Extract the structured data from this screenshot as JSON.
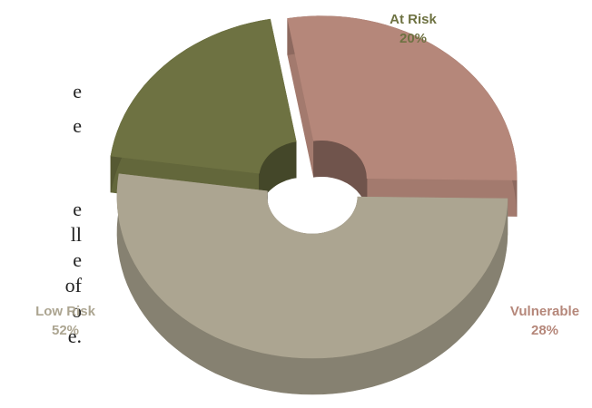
{
  "body_text_fragments": [
    "e",
    "e",
    "e",
    "ll",
    "e",
    "of",
    "o",
    "e."
  ],
  "colors": {
    "at_risk": "#6e7242",
    "vulnerable": "#b5877a",
    "low_risk": "#aca591"
  },
  "chart_data": {
    "type": "pie",
    "style": "3d-donut",
    "title": "",
    "categories": [
      "At Risk",
      "Vulnerable",
      "Low Risk"
    ],
    "values": [
      20,
      28,
      52
    ],
    "labels": [
      {
        "name": "At Risk",
        "value": "20%",
        "color": "#6e7242"
      },
      {
        "name": "Vulnerable",
        "value": "28%",
        "color": "#b5877a"
      },
      {
        "name": "Low Risk",
        "value": "52%",
        "color": "#aca591"
      }
    ],
    "exploded": true,
    "legend": "none"
  }
}
